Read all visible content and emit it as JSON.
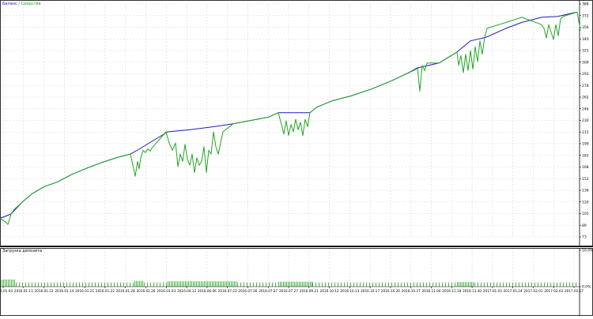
{
  "legend": {
    "balance": "Баланс",
    "separator": " / ",
    "equity": "Средства"
  },
  "deposit_panel": {
    "title": "Загрузка депозита"
  },
  "colors": {
    "balance": "#1b1bbf",
    "equity": "#21a521",
    "load": "#21a521",
    "grid": "#d9d9d9",
    "axis": "#000000"
  },
  "chart_data": [
    {
      "type": "line",
      "title": "",
      "xlabel": "",
      "ylabel": "",
      "ylim": [
        73,
        388
      ],
      "grid": true,
      "legend_position": "top-left",
      "y_ticks": [
        "388",
        "372",
        "356",
        "340",
        "325",
        "309",
        "293",
        "278",
        "262",
        "246",
        "230",
        "215",
        "199",
        "183",
        "168",
        "152",
        "136",
        "120",
        "105",
        "89",
        "73"
      ],
      "x_ticks": [
        "2016.01.04",
        "2016.01.11",
        "2016.01.12",
        "2016.01.14",
        "2016.01.21",
        "2016.01.22",
        "2016.01.28",
        "2016.02.26",
        "2016.03.03",
        "2016.04.13",
        "2016.06.06",
        "2016.07.22",
        "2016.07.26",
        "2016.07.27",
        "2016.07.27",
        "2016.09.21",
        "2016.10.12",
        "2016.10.13",
        "2016.10.17",
        "2016.10.20",
        "2016.10.27",
        "2016.11.04",
        "2016.11.18",
        "2016.11.30",
        "2017.01.03",
        "2017.01.24",
        "2017.02.01",
        "2017.02.03",
        "2017.02.17"
      ],
      "series": [
        {
          "name": "Баланс",
          "color": "#1b1bbf",
          "x": [
            0,
            14,
            28,
            40,
            56,
            72,
            90,
            110,
            130,
            150,
            165,
            175,
            212,
            240,
            270,
            295,
            320,
            340,
            352,
            392,
            400,
            420,
            445,
            470,
            495,
            515,
            530,
            555,
            578,
            595,
            615,
            640,
            660,
            685,
            705,
            730
          ],
          "y": [
            98,
            104,
            120,
            131,
            141,
            147,
            157,
            166,
            174,
            181,
            185,
            191,
            215,
            218,
            222,
            226,
            231,
            235,
            241,
            241,
            248,
            257,
            264,
            273,
            284,
            294,
            302,
            308,
            323,
            338,
            343,
            355,
            363,
            370,
            371,
            377
          ]
        },
        {
          "name": "Средства",
          "color": "#21a521",
          "x": [
            0,
            6,
            10,
            14,
            18,
            22,
            28,
            40,
            56,
            72,
            90,
            110,
            130,
            150,
            165,
            168,
            171,
            174,
            176,
            178,
            181,
            184,
            187,
            190,
            192,
            210,
            214,
            218,
            222,
            225,
            228,
            231,
            234,
            237,
            240,
            243,
            246,
            249,
            252,
            255,
            258,
            261,
            264,
            267,
            270,
            273,
            276,
            279,
            282,
            295,
            320,
            340,
            352,
            356,
            359,
            362,
            365,
            368,
            371,
            374,
            377,
            380,
            383,
            386,
            389,
            392,
            400,
            420,
            445,
            470,
            495,
            515,
            528,
            531,
            534,
            537,
            540,
            555,
            578,
            580,
            583,
            586,
            589,
            592,
            595,
            598,
            601,
            604,
            607,
            610,
            613,
            616,
            640,
            660,
            685,
            688,
            691,
            694,
            697,
            700,
            703,
            706,
            709,
            712,
            730,
            734
          ],
          "y": [
            98,
            94,
            90,
            104,
            110,
            114,
            120,
            131,
            141,
            147,
            157,
            166,
            174,
            181,
            185,
            170,
            155,
            175,
            165,
            180,
            190,
            187,
            192,
            189,
            193,
            215,
            200,
            190,
            200,
            168,
            185,
            175,
            198,
            178,
            170,
            185,
            160,
            180,
            170,
            175,
            195,
            160,
            190,
            185,
            215,
            195,
            185,
            200,
            215,
            226,
            231,
            235,
            241,
            225,
            212,
            230,
            210,
            225,
            215,
            232,
            218,
            228,
            210,
            232,
            222,
            241,
            248,
            257,
            264,
            273,
            284,
            294,
            302,
            270,
            305,
            298,
            308,
            308,
            323,
            305,
            318,
            295,
            320,
            298,
            325,
            300,
            330,
            310,
            338,
            320,
            343,
            355,
            363,
            370,
            360,
            355,
            342,
            360,
            350,
            340,
            360,
            345,
            368,
            371,
            377,
            352
          ]
        }
      ]
    },
    {
      "type": "bar",
      "title": "Загрузка депозита",
      "ylim": [
        0,
        10
      ],
      "y_ticks": [
        "10.0%",
        "0.0%"
      ],
      "segments": [
        {
          "from": 0,
          "to": 20,
          "step": 2,
          "value": 2.0
        },
        {
          "from": 20,
          "to": 170,
          "step": 4,
          "value": 1.2
        },
        {
          "from": 170,
          "to": 182,
          "step": 2,
          "value": 1.6
        },
        {
          "from": 182,
          "to": 212,
          "step": 4,
          "value": 1.2
        },
        {
          "from": 212,
          "to": 300,
          "step": 2,
          "value": 1.5
        },
        {
          "from": 300,
          "to": 352,
          "step": 4,
          "value": 1.2
        },
        {
          "from": 352,
          "to": 395,
          "step": 2,
          "value": 1.4
        },
        {
          "from": 395,
          "to": 578,
          "step": 4,
          "value": 1.2
        },
        {
          "from": 578,
          "to": 600,
          "step": 2,
          "value": 1.3
        },
        {
          "from": 600,
          "to": 730,
          "step": 4,
          "value": 1.2
        }
      ]
    }
  ]
}
